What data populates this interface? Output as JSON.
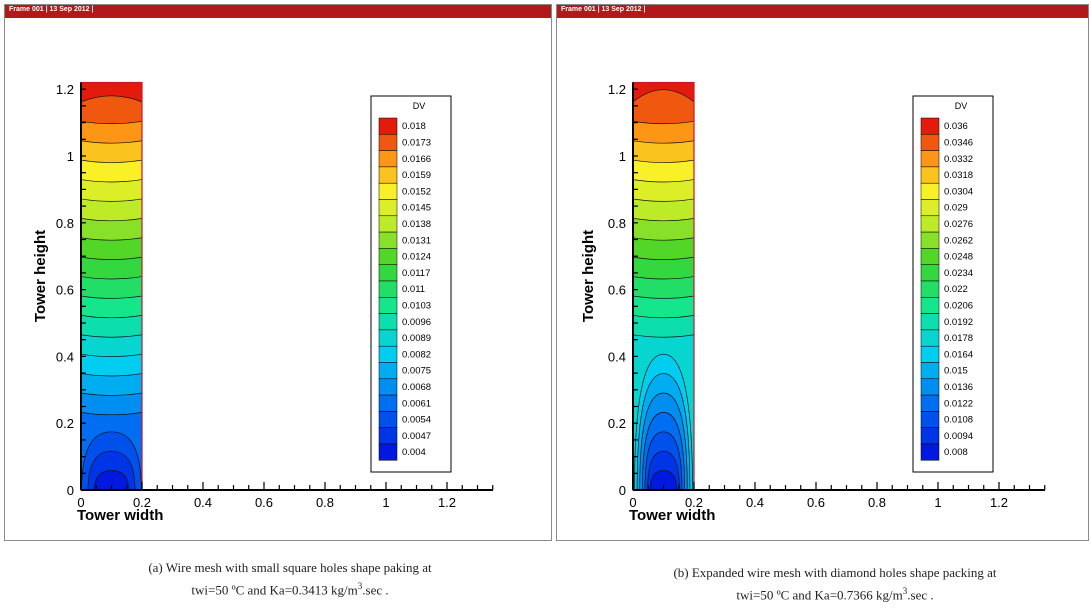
{
  "panels": [
    {
      "frame_label": "Frame 001  |  13 Sep 2012  |",
      "caption_line1": "(a) Wire mesh with small square holes shape paking at",
      "caption_line2_pre": "twi=50 ºC and Ka=0.3413 kg/m",
      "caption_sup": "3",
      "caption_line2_post": ".sec ."
    },
    {
      "frame_label": "Frame 001  |  13 Sep 2012  |",
      "caption_line1": "(b)  Expanded wire mesh with diamond holes shape packing at",
      "caption_line2_pre": "twi=50 ºC and Ka=0.7366 kg/m",
      "caption_sup": "3",
      "caption_line2_post": ".sec ."
    }
  ],
  "colors": {
    "frame_bar": "#b1191b",
    "contour_low": "#0018e0",
    "contour_high": "#e41a0c"
  },
  "chart_data": [
    {
      "type": "heatmap",
      "xlabel": "Tower width",
      "ylabel": "Tower height",
      "xlim": [
        0,
        1.35
      ],
      "ylim": [
        0,
        1.22
      ],
      "x_ticks": [
        0,
        0.2,
        0.4,
        0.6,
        0.8,
        1,
        1.2
      ],
      "y_ticks": [
        0,
        0.2,
        0.4,
        0.6,
        0.8,
        1,
        1.2
      ],
      "domain_x": [
        0,
        0.2
      ],
      "domain_y": [
        0,
        1.22
      ],
      "legend_title": "DV",
      "legend_position": "right",
      "legend_levels": [
        "0.018",
        "0.0173",
        "0.0166",
        "0.0159",
        "0.0152",
        "0.0145",
        "0.0138",
        "0.0131",
        "0.0124",
        "0.0117",
        "0.011",
        "0.0103",
        "0.0096",
        "0.0089",
        "0.0082",
        "0.0075",
        "0.0068",
        "0.0061",
        "0.0054",
        "0.0047",
        "0.004"
      ],
      "field_min": 0.004,
      "field_max": 0.018,
      "plume_height": 0.18
    },
    {
      "type": "heatmap",
      "xlabel": "Tower width",
      "ylabel": "Tower height",
      "xlim": [
        0,
        1.35
      ],
      "ylim": [
        0,
        1.22
      ],
      "x_ticks": [
        0,
        0.2,
        0.4,
        0.6,
        0.8,
        1,
        1.2
      ],
      "y_ticks": [
        0,
        0.2,
        0.4,
        0.6,
        0.8,
        1,
        1.2
      ],
      "domain_x": [
        0,
        0.2
      ],
      "domain_y": [
        0,
        1.22
      ],
      "legend_title": "DV",
      "legend_position": "right",
      "legend_levels": [
        "0.036",
        "0.0346",
        "0.0332",
        "0.0318",
        "0.0304",
        "0.029",
        "0.0276",
        "0.0262",
        "0.0248",
        "0.0234",
        "0.022",
        "0.0206",
        "0.0192",
        "0.0178",
        "0.0164",
        "0.015",
        "0.0136",
        "0.0122",
        "0.0108",
        "0.0094",
        "0.008"
      ],
      "field_min": 0.008,
      "field_max": 0.036,
      "plume_height": 0.44
    }
  ]
}
